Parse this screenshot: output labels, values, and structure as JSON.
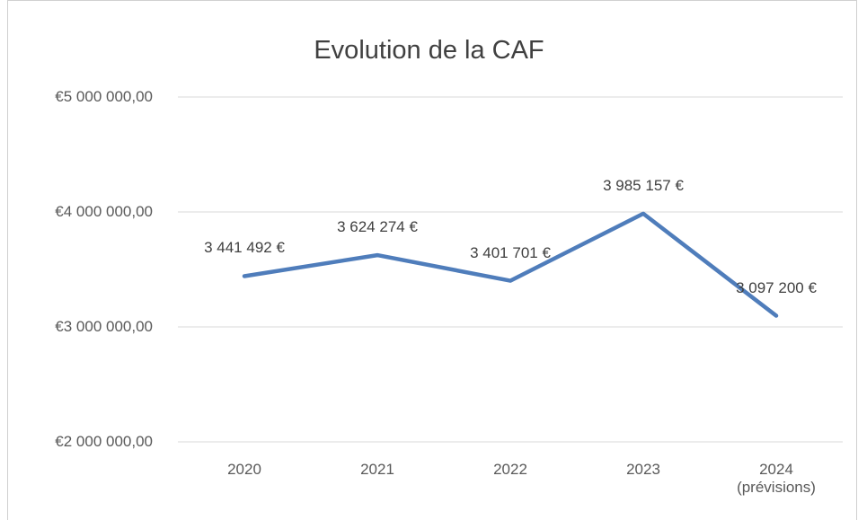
{
  "chart_data": {
    "type": "line",
    "title": "Evolution de la CAF",
    "categories": [
      "2020",
      "2021",
      "2022",
      "2023",
      "2024 (prévisions)"
    ],
    "series": [
      {
        "name": "CAF",
        "color": "#4f7dbb",
        "values": [
          3441492,
          3624274,
          3401701,
          3985157,
          3097200
        ],
        "value_labels": [
          "3 441 492 €",
          "3 624 274 €",
          "3 401 701 €",
          "3 985 157 €",
          "3 097 200 €"
        ]
      }
    ],
    "ylim": [
      2000000,
      5000000
    ],
    "yticks": [
      {
        "value": 2000000,
        "label": "€2 000 000,00"
      },
      {
        "value": 3000000,
        "label": "€3 000 000,00"
      },
      {
        "value": 4000000,
        "label": "€4 000 000,00"
      },
      {
        "value": 5000000,
        "label": "€5 000 000,00"
      }
    ],
    "grid": true
  }
}
